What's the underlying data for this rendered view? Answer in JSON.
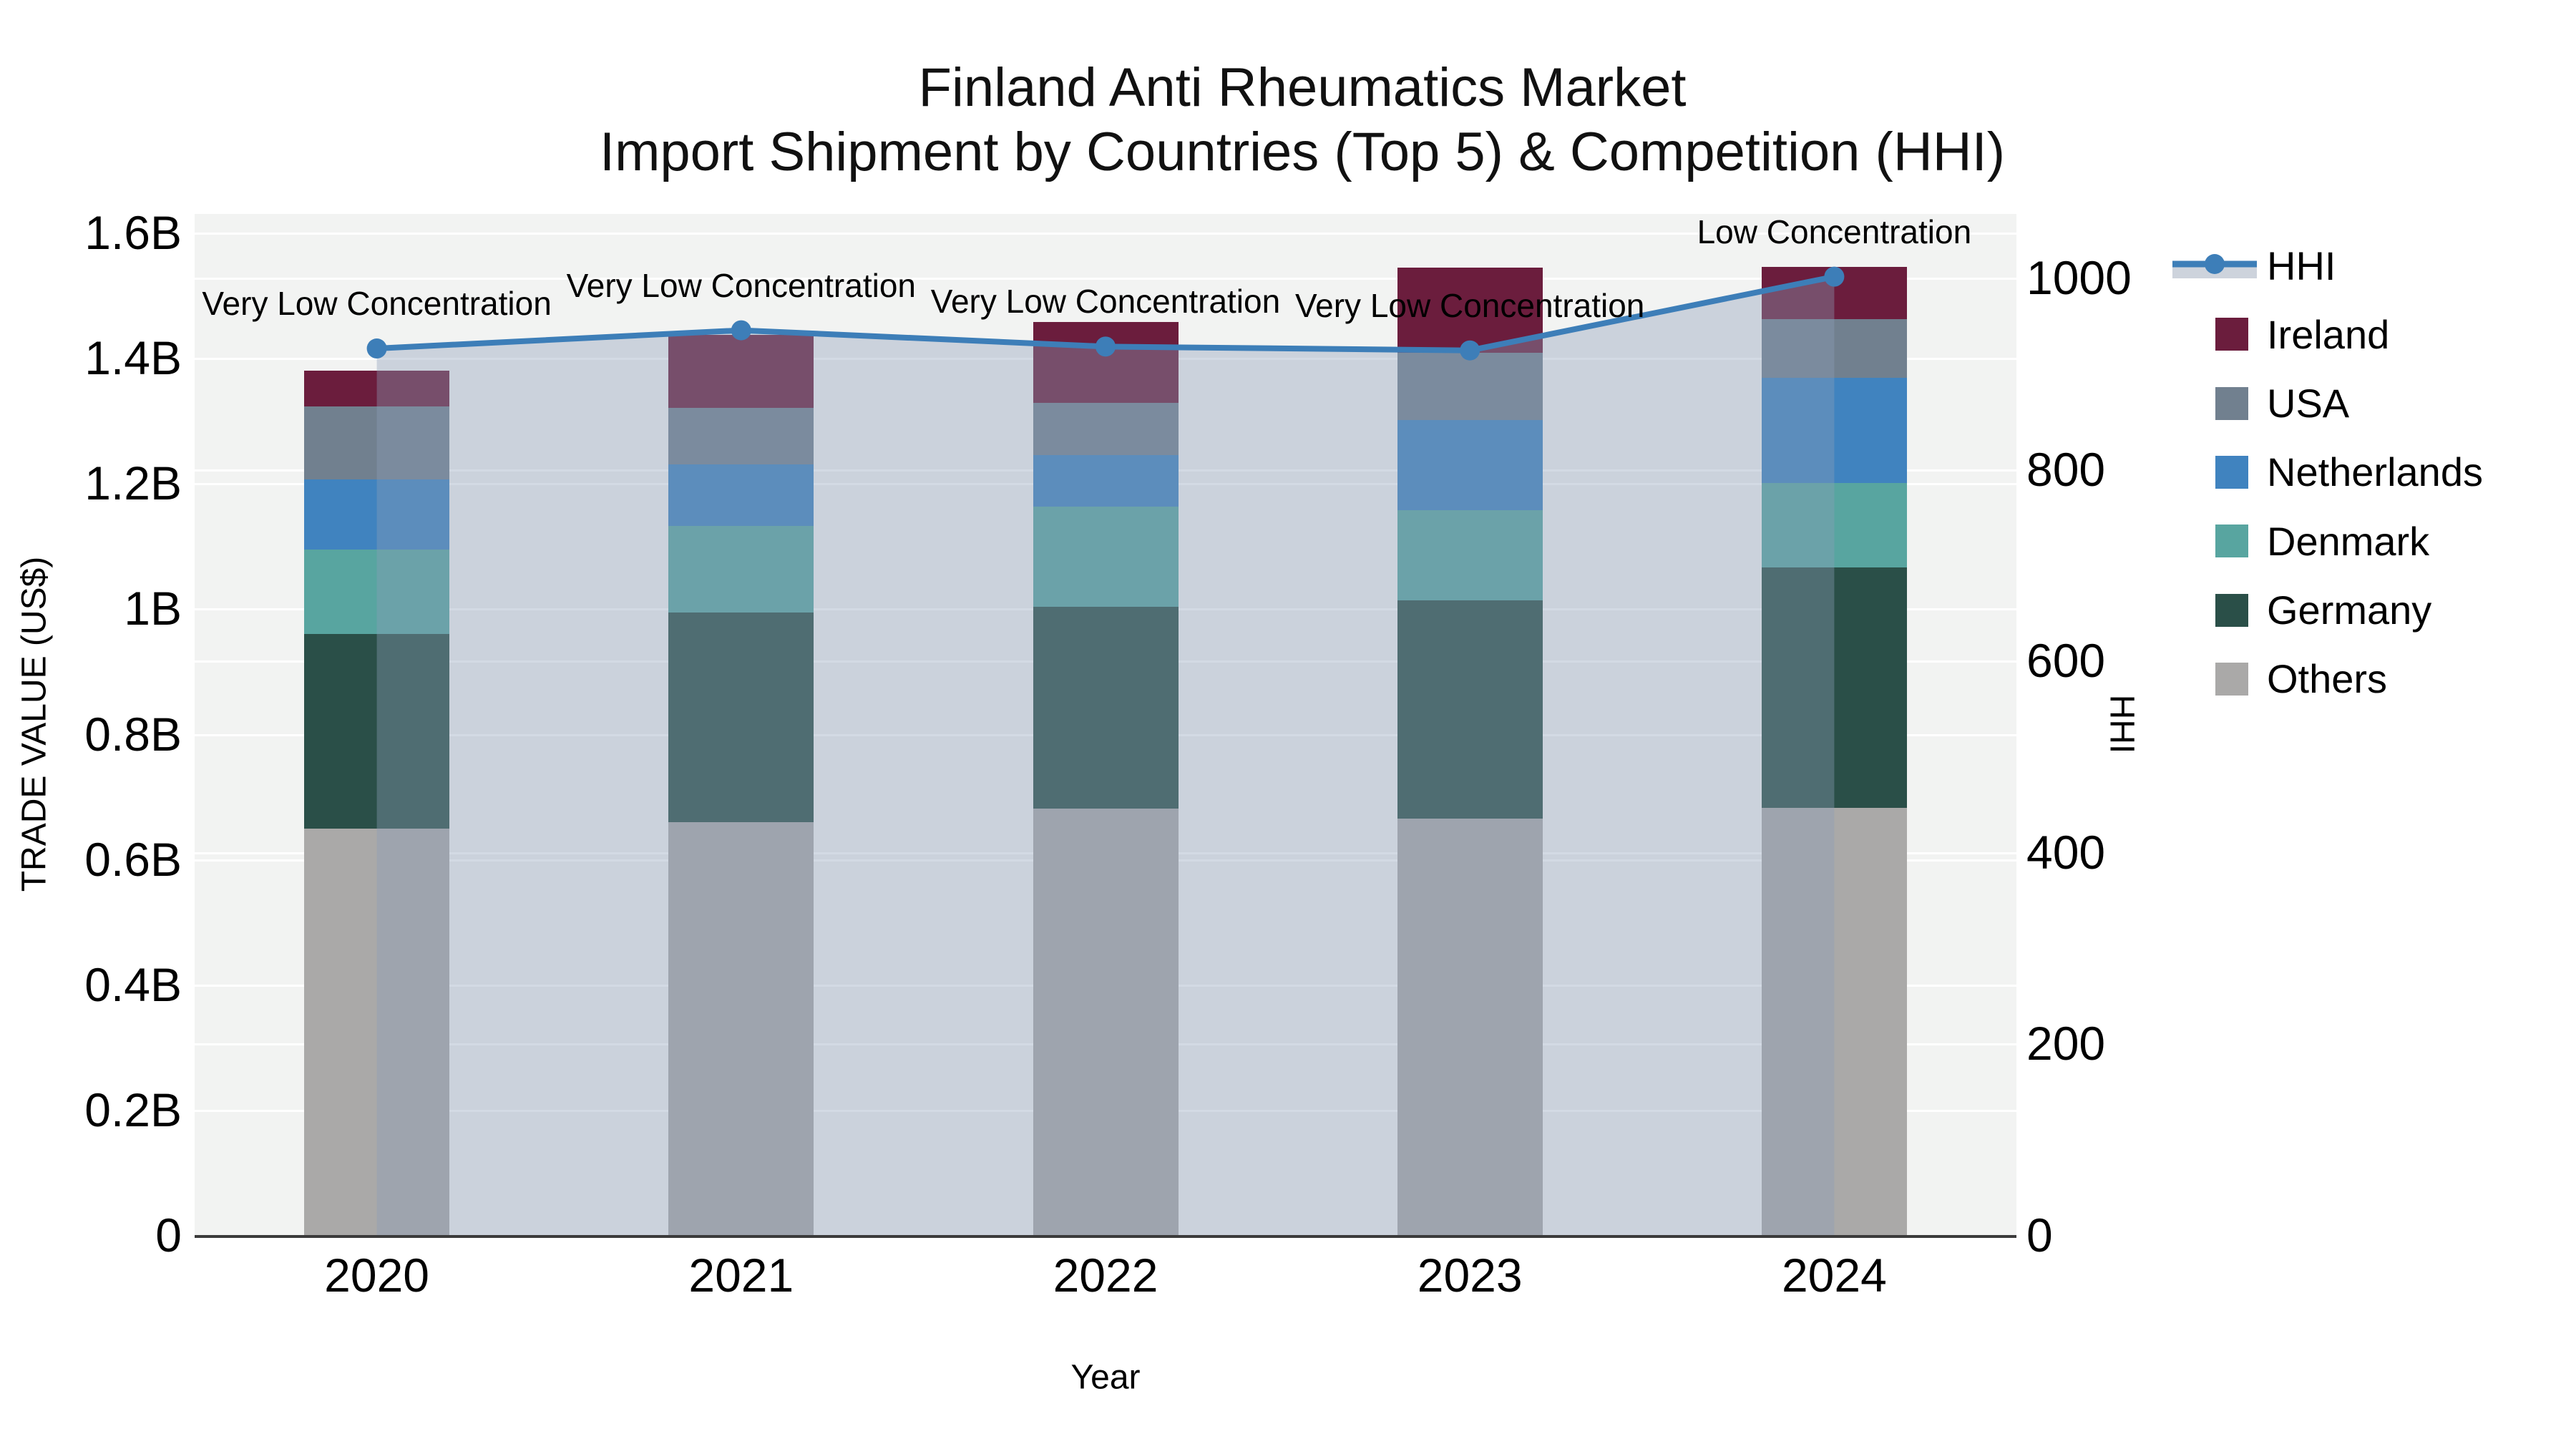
{
  "title": {
    "line1": "Finland Anti Rheumatics Market",
    "line2": "Import Shipment by Countries (Top 5) & Competition (HHI)"
  },
  "axes": {
    "left": {
      "title": "TRADE VALUE (US$)",
      "ticks": [
        "0",
        "0.2B",
        "0.4B",
        "0.6B",
        "0.8B",
        "1B",
        "1.2B",
        "1.4B",
        "1.6B"
      ]
    },
    "right": {
      "title": "HHI",
      "ticks": [
        "0",
        "200",
        "400",
        "600",
        "800",
        "1000"
      ]
    },
    "x": {
      "title": "Year",
      "ticks": [
        "2020",
        "2021",
        "2022",
        "2023",
        "2024"
      ]
    }
  },
  "legend": {
    "items": [
      {
        "label": "HHI",
        "type": "line"
      },
      {
        "label": "Ireland",
        "type": "swatch",
        "color": "#6b1d3d"
      },
      {
        "label": "USA",
        "type": "swatch",
        "color": "#71808f"
      },
      {
        "label": "Netherlands",
        "type": "swatch",
        "color": "#4083bf"
      },
      {
        "label": "Denmark",
        "type": "swatch",
        "color": "#58a5a0"
      },
      {
        "label": "Germany",
        "type": "swatch",
        "color": "#2a4f48"
      },
      {
        "label": "Others",
        "type": "swatch",
        "color": "#aaa9a8"
      }
    ]
  },
  "colors": {
    "plot_bg": "#f2f3f2",
    "grid": "#ffffff",
    "axis_line": "#3b3b3b",
    "hhi_line": "#3d7eb8",
    "area_fill": "rgba(140,158,184,0.38)",
    "legend_area_swatch": "#cdd3dc",
    "text": "#000000"
  },
  "chart_data": {
    "type": "combo-stacked-bar-and-line-area",
    "categories": [
      "2020",
      "2021",
      "2022",
      "2023",
      "2024"
    ],
    "bar_value_unit": "billion US$ (left axis TRADE VALUE)",
    "stack_order_bottom_to_top": [
      "Others",
      "Germany",
      "Denmark",
      "Netherlands",
      "USA",
      "Ireland"
    ],
    "series": [
      {
        "name": "Others",
        "color": "#aaa9a8",
        "values": [
          0.65,
          0.66,
          0.682,
          0.666,
          0.683
        ]
      },
      {
        "name": "Germany",
        "color": "#2a4f48",
        "values": [
          0.31,
          0.335,
          0.322,
          0.348,
          0.384
        ]
      },
      {
        "name": "Denmark",
        "color": "#58a5a0",
        "values": [
          0.135,
          0.138,
          0.159,
          0.144,
          0.134
        ]
      },
      {
        "name": "Netherlands",
        "color": "#4083bf",
        "values": [
          0.112,
          0.098,
          0.083,
          0.144,
          0.168
        ]
      },
      {
        "name": "USA",
        "color": "#71808f",
        "values": [
          0.117,
          0.09,
          0.083,
          0.107,
          0.094
        ]
      },
      {
        "name": "Ireland",
        "color": "#6b1d3d",
        "values": [
          0.056,
          0.116,
          0.128,
          0.135,
          0.082
        ]
      }
    ],
    "bar_totals": [
      1.38,
      1.437,
      1.457,
      1.544,
      1.545
    ],
    "line_series": {
      "name": "HHI",
      "axis": "right",
      "values": [
        926,
        945,
        928,
        924,
        1001
      ],
      "style": "line with circle markers and area fill to zero"
    },
    "annotations": [
      {
        "category": "2020",
        "text": "Very Low Concentration"
      },
      {
        "category": "2021",
        "text": "Very Low Concentration"
      },
      {
        "category": "2022",
        "text": "Very Low Concentration"
      },
      {
        "category": "2023",
        "text": "Very Low Concentration"
      },
      {
        "category": "2024",
        "text": "Low Concentration"
      }
    ],
    "left_axis_range_B": [
      0,
      1.63
    ],
    "left_axis_tick_step_B": 0.2,
    "right_axis_range": [
      0,
      1067
    ],
    "right_axis_tick_step": 200,
    "grid": "horizontal white gridlines for both axes",
    "legend_position": "right"
  }
}
